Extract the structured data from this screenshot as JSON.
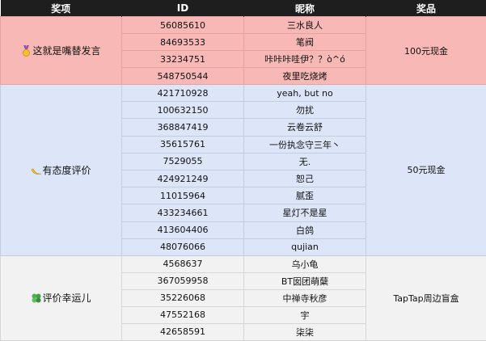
{
  "header": {
    "category": "奖项",
    "id": "ID",
    "nickname": "昵称",
    "prize": "奖品"
  },
  "groups": [
    {
      "category": "这就是嘴替发言",
      "icon": "medal-icon",
      "prize": "100元现金",
      "color": "#f8b9b6",
      "rows": [
        {
          "id": "56085610",
          "nickname": "三水良人"
        },
        {
          "id": "84693533",
          "nickname": "笔阀"
        },
        {
          "id": "33234751",
          "nickname": "咔咔咔哇伊？？ò^ó"
        },
        {
          "id": "548750544",
          "nickname": "夜里吃烧烤"
        }
      ]
    },
    {
      "category": "有态度评价",
      "icon": "crescent-icon",
      "prize": "50元现金",
      "color": "#dce6f8",
      "rows": [
        {
          "id": "421710928",
          "nickname": "yeah, but no"
        },
        {
          "id": "100632150",
          "nickname": "勿扰"
        },
        {
          "id": "368847419",
          "nickname": "云卷云舒"
        },
        {
          "id": "35615761",
          "nickname": "一份执念守三年丶"
        },
        {
          "id": "7529055",
          "nickname": "无."
        },
        {
          "id": "424921249",
          "nickname": "恕己"
        },
        {
          "id": "11015964",
          "nickname": "腻歪"
        },
        {
          "id": "433234661",
          "nickname": "星灯不是星"
        },
        {
          "id": "413604406",
          "nickname": "白鸽"
        },
        {
          "id": "48076066",
          "nickname": "qujian"
        }
      ]
    },
    {
      "category": "评价幸运儿",
      "icon": "clover-icon",
      "prize": "TapTap周边盲盒",
      "color": "#f2f2f2",
      "rows": [
        {
          "id": "4568637",
          "nickname": "乌小龟"
        },
        {
          "id": "367059958",
          "nickname": "BT囡团萌蘖"
        },
        {
          "id": "35226068",
          "nickname": "中禅寺秋彦"
        },
        {
          "id": "47552168",
          "nickname": "宇"
        },
        {
          "id": "42658591",
          "nickname": "柒柒"
        }
      ]
    }
  ]
}
